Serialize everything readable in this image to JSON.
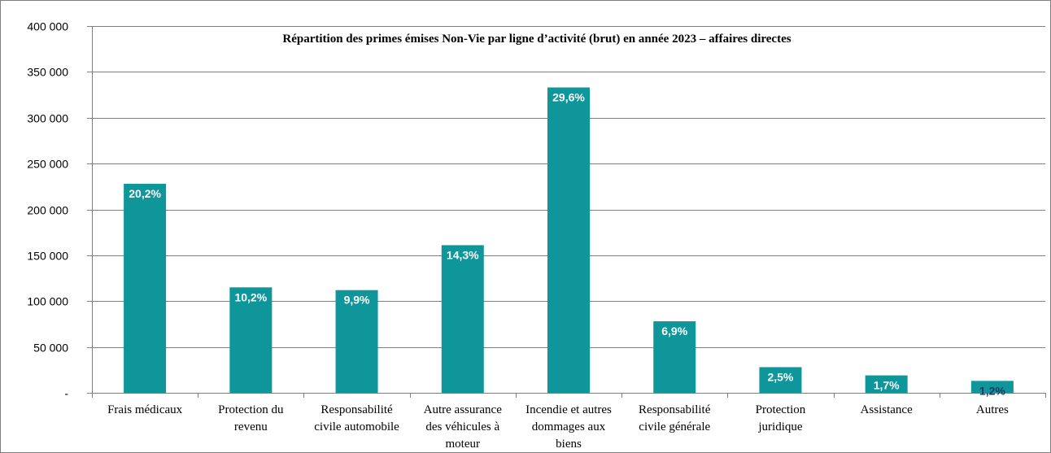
{
  "chart_data": {
    "type": "bar",
    "title": "Répartition des primes émises Non-Vie par ligne d’activité (brut) en année 2023 – affaires directes",
    "xlabel": "",
    "ylabel": "",
    "ylim": [
      0,
      400000
    ],
    "yticks": [
      0,
      50000,
      100000,
      150000,
      200000,
      250000,
      300000,
      350000,
      400000
    ],
    "ytick_labels": [
      "-",
      "50 000",
      "100 000",
      "150 000",
      "200 000",
      "250 000",
      "300 000",
      "350 000",
      "400 000"
    ],
    "grid": true,
    "legend": "none",
    "bar_color": "#0e969a",
    "categories": [
      [
        "Frais médicaux"
      ],
      [
        "Protection du",
        "revenu"
      ],
      [
        "Responsabilité",
        "civile automobile"
      ],
      [
        "Autre assurance",
        "des véhicules à",
        "moteur"
      ],
      [
        "Incendie et autres",
        "dommages aux",
        "biens"
      ],
      [
        "Responsabilité",
        "civile générale"
      ],
      [
        "Protection",
        "juridique"
      ],
      [
        "Assistance"
      ],
      [
        "Autres"
      ]
    ],
    "values": [
      228000,
      115000,
      112000,
      161000,
      333000,
      78000,
      28000,
      19000,
      13000
    ],
    "data_labels": [
      "20,2%",
      "10,2%",
      "9,9%",
      "14,3%",
      "29,6%",
      "6,9%",
      "2,5%",
      "1,7%",
      "1,2%"
    ],
    "data_label_colors": [
      "#ffffff",
      "#ffffff",
      "#ffffff",
      "#ffffff",
      "#ffffff",
      "#ffffff",
      "#ffffff",
      "#ffffff",
      "#1f3864"
    ]
  }
}
